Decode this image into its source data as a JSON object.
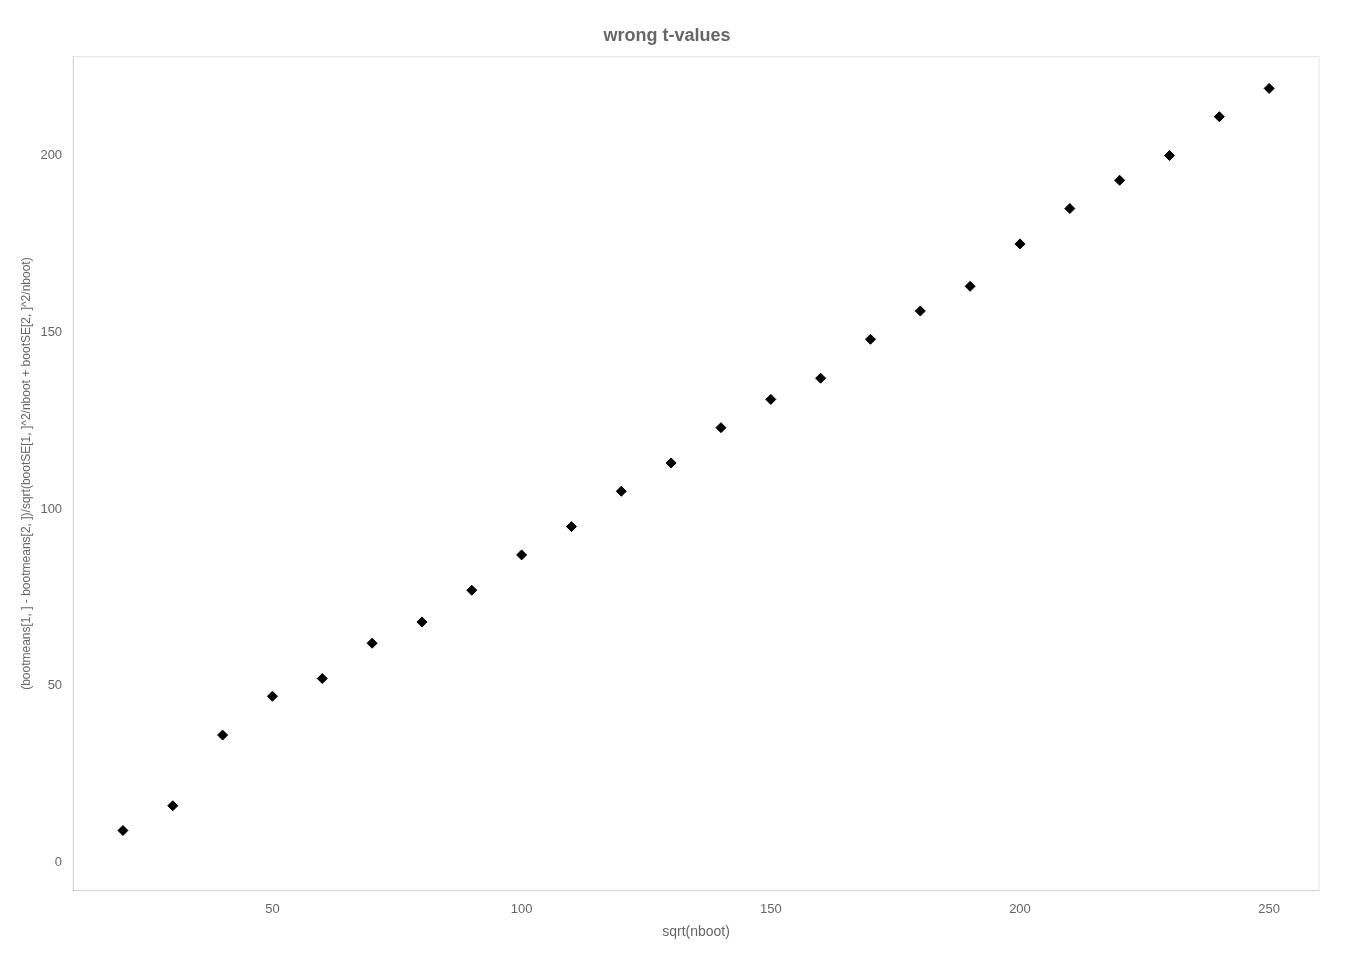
{
  "chart_data": {
    "type": "scatter",
    "title": "wrong t-values",
    "xlabel": "sqrt(nboot)",
    "ylabel": "(bootmeans[1, ] - bootmeans[2, ])/sqrt(bootSE[1, ]^2/nboot + bootSE[2, ]^2/nboot)",
    "x": [
      20,
      30,
      40,
      50,
      60,
      70,
      80,
      90,
      100,
      110,
      120,
      130,
      140,
      150,
      160,
      170,
      180,
      190,
      200,
      210,
      220,
      230,
      240,
      250
    ],
    "values": [
      9,
      16,
      36,
      47,
      52,
      62,
      68,
      77,
      87,
      95,
      105,
      113,
      123,
      131,
      137,
      148,
      156,
      163,
      175,
      185,
      193,
      200,
      211,
      219
    ],
    "xlim": [
      10,
      260
    ],
    "ylim": [
      -8,
      228
    ],
    "xticks": [
      50,
      100,
      150,
      200,
      250
    ],
    "yticks": [
      0,
      50,
      100,
      150,
      200
    ],
    "color": "black",
    "marker": "diamond",
    "grid": false
  }
}
